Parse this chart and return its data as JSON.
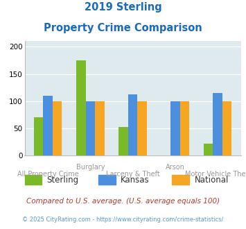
{
  "title_line1": "2019 Sterling",
  "title_line2": "Property Crime Comparison",
  "sterling": [
    70,
    175,
    53,
    0,
    22
  ],
  "kansas": [
    110,
    100,
    112,
    100,
    115
  ],
  "national": [
    100,
    100,
    100,
    100,
    100
  ],
  "sterling_color": "#7aba28",
  "kansas_color": "#4b8fde",
  "national_color": "#f5a623",
  "background_color": "#deeaed",
  "ylim": [
    0,
    210
  ],
  "yticks": [
    0,
    50,
    100,
    150,
    200
  ],
  "legend_labels": [
    "Sterling",
    "Kansas",
    "National"
  ],
  "footnote1": "Compared to U.S. average. (U.S. average equals 100)",
  "footnote2": "© 2025 CityRating.com - https://www.cityrating.com/crime-statistics/",
  "title_color": "#1a6bbf",
  "footnote1_color": "#c0392b",
  "footnote2_color": "#5b9bd5",
  "label_color": "#999999",
  "top_xlabels": [
    "",
    "Burglary",
    "",
    "Arson",
    ""
  ],
  "bot_xlabels": [
    "All Property Crime",
    "",
    "Larceny & Theft",
    "",
    "Motor Vehicle Theft"
  ]
}
